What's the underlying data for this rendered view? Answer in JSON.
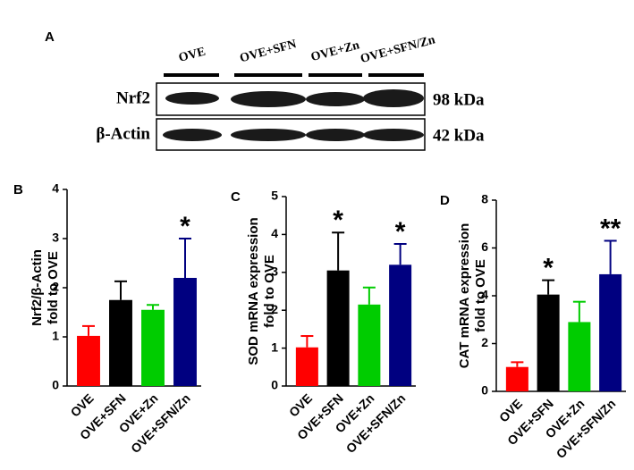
{
  "blot": {
    "panel": "A",
    "lanes": [
      "OVE",
      "OVE+SFN",
      "OVE+Zn",
      "OVE+SFN/Zn"
    ],
    "rows": [
      {
        "label": "Nrf2",
        "size": "98 kDa"
      },
      {
        "label": "β-Actin",
        "size": "42 kDa"
      }
    ]
  },
  "chart_data": [
    {
      "type": "bar",
      "panel": "B",
      "ylabel": [
        "Nrf2/β-Actin",
        "fold to OVE"
      ],
      "categories": [
        "OVE",
        "OVE+SFN",
        "OVE+Zn",
        "OVE+SFN/Zn"
      ],
      "values": [
        1.02,
        1.75,
        1.55,
        2.2
      ],
      "errors": [
        0.2,
        0.38,
        0.1,
        0.8
      ],
      "colors": [
        "#ff0000",
        "#000000",
        "#00cc00",
        "#000080"
      ],
      "significance": [
        null,
        null,
        null,
        "*"
      ],
      "ylim": [
        0,
        4
      ],
      "yticks": [
        0,
        1,
        2,
        3,
        4
      ]
    },
    {
      "type": "bar",
      "panel": "C",
      "ylabel": [
        "SOD mRNA expression",
        "fold to OVE"
      ],
      "categories": [
        "OVE",
        "OVE+SFN",
        "OVE+Zn",
        "OVE+SFN/Zn"
      ],
      "values": [
        1.02,
        3.05,
        2.15,
        3.2
      ],
      "errors": [
        0.3,
        1.0,
        0.45,
        0.55
      ],
      "colors": [
        "#ff0000",
        "#000000",
        "#00cc00",
        "#000080"
      ],
      "significance": [
        null,
        "*",
        null,
        "*"
      ],
      "ylim": [
        0,
        5
      ],
      "yticks": [
        0,
        1,
        2,
        3,
        4,
        5
      ]
    },
    {
      "type": "bar",
      "panel": "D",
      "ylabel": [
        "CAT mRNA expression",
        "fold to OVE"
      ],
      "categories": [
        "OVE",
        "OVE+SFN",
        "OVE+Zn",
        "OVE+SFN/Zn"
      ],
      "values": [
        1.02,
        4.05,
        2.9,
        4.9
      ],
      "errors": [
        0.2,
        0.6,
        0.85,
        1.4
      ],
      "colors": [
        "#ff0000",
        "#000000",
        "#00cc00",
        "#000080"
      ],
      "significance": [
        null,
        "*",
        null,
        "**"
      ],
      "ylim": [
        0,
        8
      ],
      "yticks": [
        0,
        2,
        4,
        6,
        8
      ]
    }
  ]
}
